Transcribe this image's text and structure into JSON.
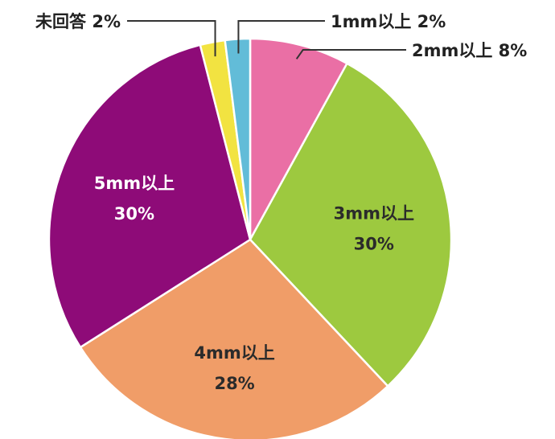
{
  "chart_data": {
    "type": "pie",
    "title": "",
    "start_angle_deg": 0,
    "direction": "clockwise",
    "slices": [
      {
        "label": "2mm以上",
        "value": 8,
        "display": "8%",
        "color": "#ea6fa5",
        "label_placement": "outside"
      },
      {
        "label": "3mm以上",
        "value": 30,
        "display": "30%",
        "color": "#9dc93f",
        "label_placement": "inside"
      },
      {
        "label": "4mm以上",
        "value": 28,
        "display": "28%",
        "color": "#f09d68",
        "label_placement": "inside"
      },
      {
        "label": "5mm以上",
        "value": 30,
        "display": "30%",
        "color": "#8e0b78",
        "label_placement": "inside"
      },
      {
        "label": "未回答",
        "value": 2,
        "display": "2%",
        "color": "#f2e341",
        "label_placement": "outside"
      },
      {
        "label": "1mm以上",
        "value": 2,
        "display": "2%",
        "color": "#62bcd8",
        "label_placement": "outside"
      }
    ],
    "inside_label_colors": {
      "3mm以上": "#2b2b2b",
      "4mm以上": "#2b2b2b",
      "5mm以上": "#ffffff"
    }
  }
}
